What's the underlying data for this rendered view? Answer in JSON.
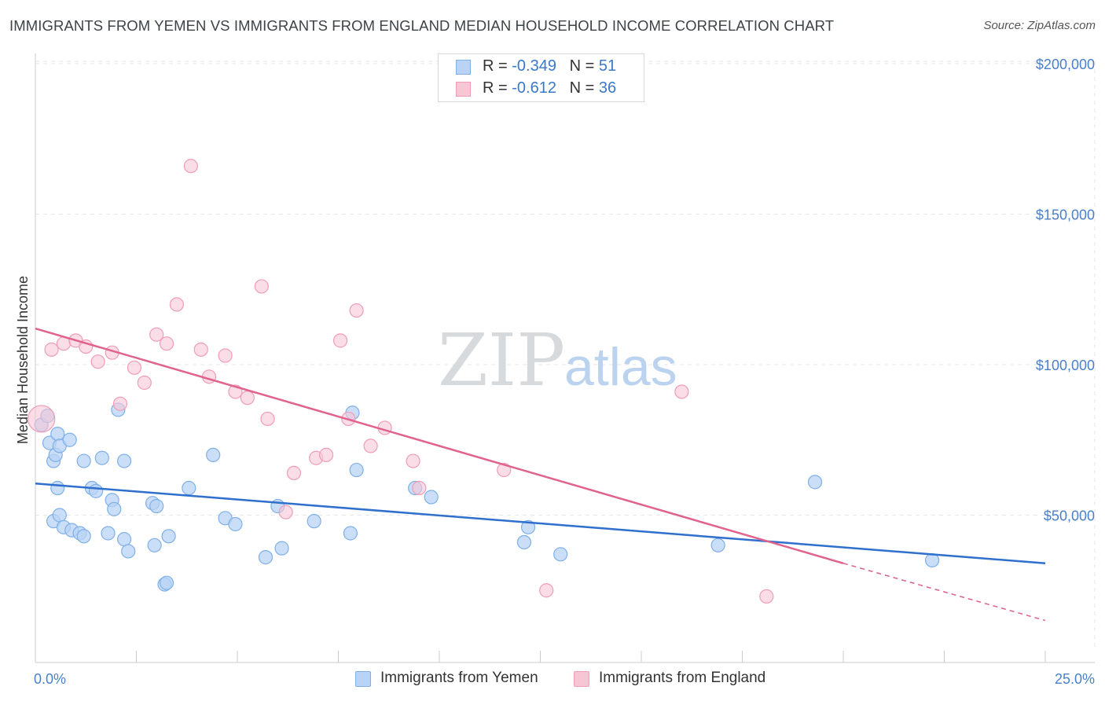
{
  "title": "IMMIGRANTS FROM YEMEN VS IMMIGRANTS FROM ENGLAND MEDIAN HOUSEHOLD INCOME CORRELATION CHART",
  "source": "Source: ZipAtlas.com",
  "watermark": {
    "zip": "ZIP",
    "atlas": "atlas"
  },
  "legend": {
    "yemen": {
      "r_label": "R =",
      "r_value": "-0.349",
      "n_label": "N =",
      "n_value": "51"
    },
    "england": {
      "r_label": "R =",
      "r_value": "-0.612",
      "n_label": "N =",
      "n_value": "36"
    }
  },
  "colors": {
    "yemen_fill": "#b8d3f5",
    "yemen_stroke": "#7fb0e8",
    "yemen_line": "#2f6fcd",
    "england_fill": "#f7c6d5",
    "england_stroke": "#ef9db6",
    "england_line": "#e0628d",
    "grid": "#e3e6ea",
    "axis_text": "#4a7fc9"
  },
  "chart_data": {
    "type": "scatter",
    "title": "IMMIGRANTS FROM YEMEN VS IMMIGRANTS FROM ENGLAND MEDIAN HOUSEHOLD INCOME CORRELATION CHART",
    "xlabel": "",
    "ylabel": "Median Household Income",
    "xlim": [
      0,
      25
    ],
    "ylim": [
      0,
      210000
    ],
    "x_tick_labels": [
      "0.0%",
      "25.0%"
    ],
    "y_ticks": [
      50000,
      100000,
      150000,
      200000
    ],
    "y_tick_labels": [
      "$50,000",
      "$100,000",
      "$150,000",
      "$200,000"
    ],
    "series": [
      {
        "name": "Immigrants from Yemen",
        "points": [
          [
            0.15,
            80000
          ],
          [
            0.3,
            83000
          ],
          [
            0.45,
            48000
          ],
          [
            0.55,
            59000
          ],
          [
            0.6,
            50000
          ],
          [
            0.7,
            46000
          ],
          [
            0.9,
            45000
          ],
          [
            1.1,
            44000
          ],
          [
            1.2,
            43000
          ],
          [
            0.35,
            74000
          ],
          [
            0.45,
            68000
          ],
          [
            0.5,
            70000
          ],
          [
            0.55,
            77000
          ],
          [
            0.6,
            73000
          ],
          [
            0.85,
            75000
          ],
          [
            1.2,
            68000
          ],
          [
            1.4,
            59000
          ],
          [
            1.5,
            58000
          ],
          [
            1.65,
            69000
          ],
          [
            1.9,
            55000
          ],
          [
            1.95,
            52000
          ],
          [
            2.05,
            85000
          ],
          [
            2.2,
            68000
          ],
          [
            2.2,
            42000
          ],
          [
            2.3,
            38000
          ],
          [
            2.9,
            54000
          ],
          [
            2.95,
            40000
          ],
          [
            3.0,
            53000
          ],
          [
            3.2,
            27000
          ],
          [
            3.25,
            27500
          ],
          [
            3.3,
            43000
          ],
          [
            3.8,
            59000
          ],
          [
            4.4,
            70000
          ],
          [
            4.7,
            49000
          ],
          [
            4.95,
            47000
          ],
          [
            5.7,
            36000
          ],
          [
            6.0,
            53000
          ],
          [
            6.1,
            39000
          ],
          [
            6.9,
            48000
          ],
          [
            7.8,
            44000
          ],
          [
            7.85,
            84000
          ],
          [
            7.95,
            65000
          ],
          [
            9.4,
            59000
          ],
          [
            9.8,
            56000
          ],
          [
            12.1,
            41000
          ],
          [
            12.2,
            46000
          ],
          [
            13.0,
            37000
          ],
          [
            16.9,
            40000
          ],
          [
            19.3,
            61000
          ],
          [
            22.2,
            35000
          ],
          [
            1.8,
            44000
          ]
        ]
      },
      {
        "name": "Immigrants from England",
        "points": [
          [
            0.15,
            82000
          ],
          [
            0.4,
            105000
          ],
          [
            0.7,
            107000
          ],
          [
            1.0,
            108000
          ],
          [
            1.25,
            106000
          ],
          [
            1.55,
            101000
          ],
          [
            1.9,
            104000
          ],
          [
            2.1,
            87000
          ],
          [
            2.45,
            99000
          ],
          [
            2.7,
            94000
          ],
          [
            3.0,
            110000
          ],
          [
            3.25,
            107000
          ],
          [
            3.5,
            120000
          ],
          [
            3.85,
            166000
          ],
          [
            4.1,
            105000
          ],
          [
            4.3,
            96000
          ],
          [
            4.7,
            103000
          ],
          [
            4.95,
            91000
          ],
          [
            5.25,
            89000
          ],
          [
            5.6,
            126000
          ],
          [
            5.75,
            82000
          ],
          [
            6.2,
            51000
          ],
          [
            6.4,
            64000
          ],
          [
            6.95,
            69000
          ],
          [
            7.2,
            70000
          ],
          [
            7.55,
            108000
          ],
          [
            7.75,
            82000
          ],
          [
            7.95,
            118000
          ],
          [
            8.3,
            73000
          ],
          [
            8.65,
            79000
          ],
          [
            9.35,
            68000
          ],
          [
            9.5,
            59000
          ],
          [
            11.6,
            65000
          ],
          [
            12.65,
            25000
          ],
          [
            16.0,
            91000
          ],
          [
            18.1,
            23000
          ]
        ]
      }
    ],
    "trend_lines": [
      {
        "name": "Immigrants from Yemen",
        "x": [
          0,
          25
        ],
        "y": [
          60500,
          34000
        ]
      },
      {
        "name": "Immigrants from England",
        "x": [
          0,
          20
        ],
        "y": [
          112000,
          34000
        ],
        "dashed_extension_to": [
          25,
          15000
        ]
      }
    ]
  }
}
